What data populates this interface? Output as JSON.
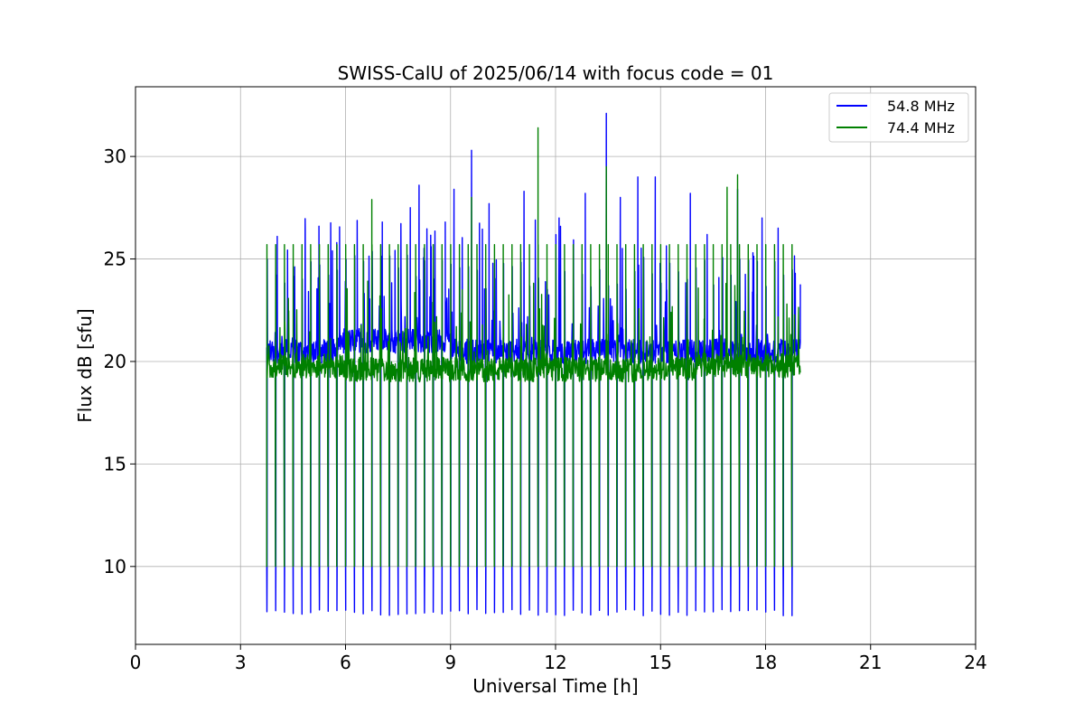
{
  "chart_data": {
    "type": "line",
    "title": "SWISS-CalU of 2025/06/14 with focus code = 01",
    "xlabel": "Universal Time [h]",
    "ylabel": "Flux dB [sfu]",
    "xlim": [
      0,
      24
    ],
    "ylim": [
      6.2,
      33.4
    ],
    "xticks": [
      0,
      3,
      6,
      9,
      12,
      15,
      18,
      21,
      24
    ],
    "yticks": [
      10,
      15,
      20,
      25,
      30
    ],
    "grid": true,
    "legend_position": "top-right",
    "time_range": [
      3.75,
      19.0
    ],
    "spike_interval_h": 0.25,
    "series": [
      {
        "name": "54.8 MHz",
        "color": "#0000ff",
        "baseline": 20.2,
        "calibration_high": 10.0,
        "calibration_low": 7.6,
        "peaks": [
          {
            "x": 4.05,
            "y": 26.1
          },
          {
            "x": 4.85,
            "y": 26.4
          },
          {
            "x": 5.75,
            "y": 25.8
          },
          {
            "x": 7.05,
            "y": 26.8
          },
          {
            "x": 7.85,
            "y": 27.5
          },
          {
            "x": 8.1,
            "y": 28.6
          },
          {
            "x": 8.85,
            "y": 26.8
          },
          {
            "x": 9.1,
            "y": 28.4
          },
          {
            "x": 9.6,
            "y": 30.3
          },
          {
            "x": 10.1,
            "y": 27.7
          },
          {
            "x": 11.1,
            "y": 28.3
          },
          {
            "x": 12.1,
            "y": 27.0
          },
          {
            "x": 12.85,
            "y": 28.2
          },
          {
            "x": 13.45,
            "y": 32.1
          },
          {
            "x": 13.85,
            "y": 28.0
          },
          {
            "x": 14.35,
            "y": 29.0
          },
          {
            "x": 14.85,
            "y": 29.0
          },
          {
            "x": 15.85,
            "y": 28.2
          },
          {
            "x": 17.2,
            "y": 28.4
          },
          {
            "x": 17.9,
            "y": 27.0
          },
          {
            "x": 18.85,
            "y": 24.3
          }
        ]
      },
      {
        "name": "74.4 MHz",
        "color": "#008000",
        "baseline": 19.2,
        "calibration_high": 25.7,
        "calibration_low": 10.0,
        "peaks": [
          {
            "x": 6.75,
            "y": 27.9
          },
          {
            "x": 9.6,
            "y": 28.0
          },
          {
            "x": 11.5,
            "y": 31.4
          },
          {
            "x": 13.45,
            "y": 29.5
          },
          {
            "x": 16.9,
            "y": 28.5
          },
          {
            "x": 17.2,
            "y": 29.1
          }
        ]
      }
    ]
  }
}
